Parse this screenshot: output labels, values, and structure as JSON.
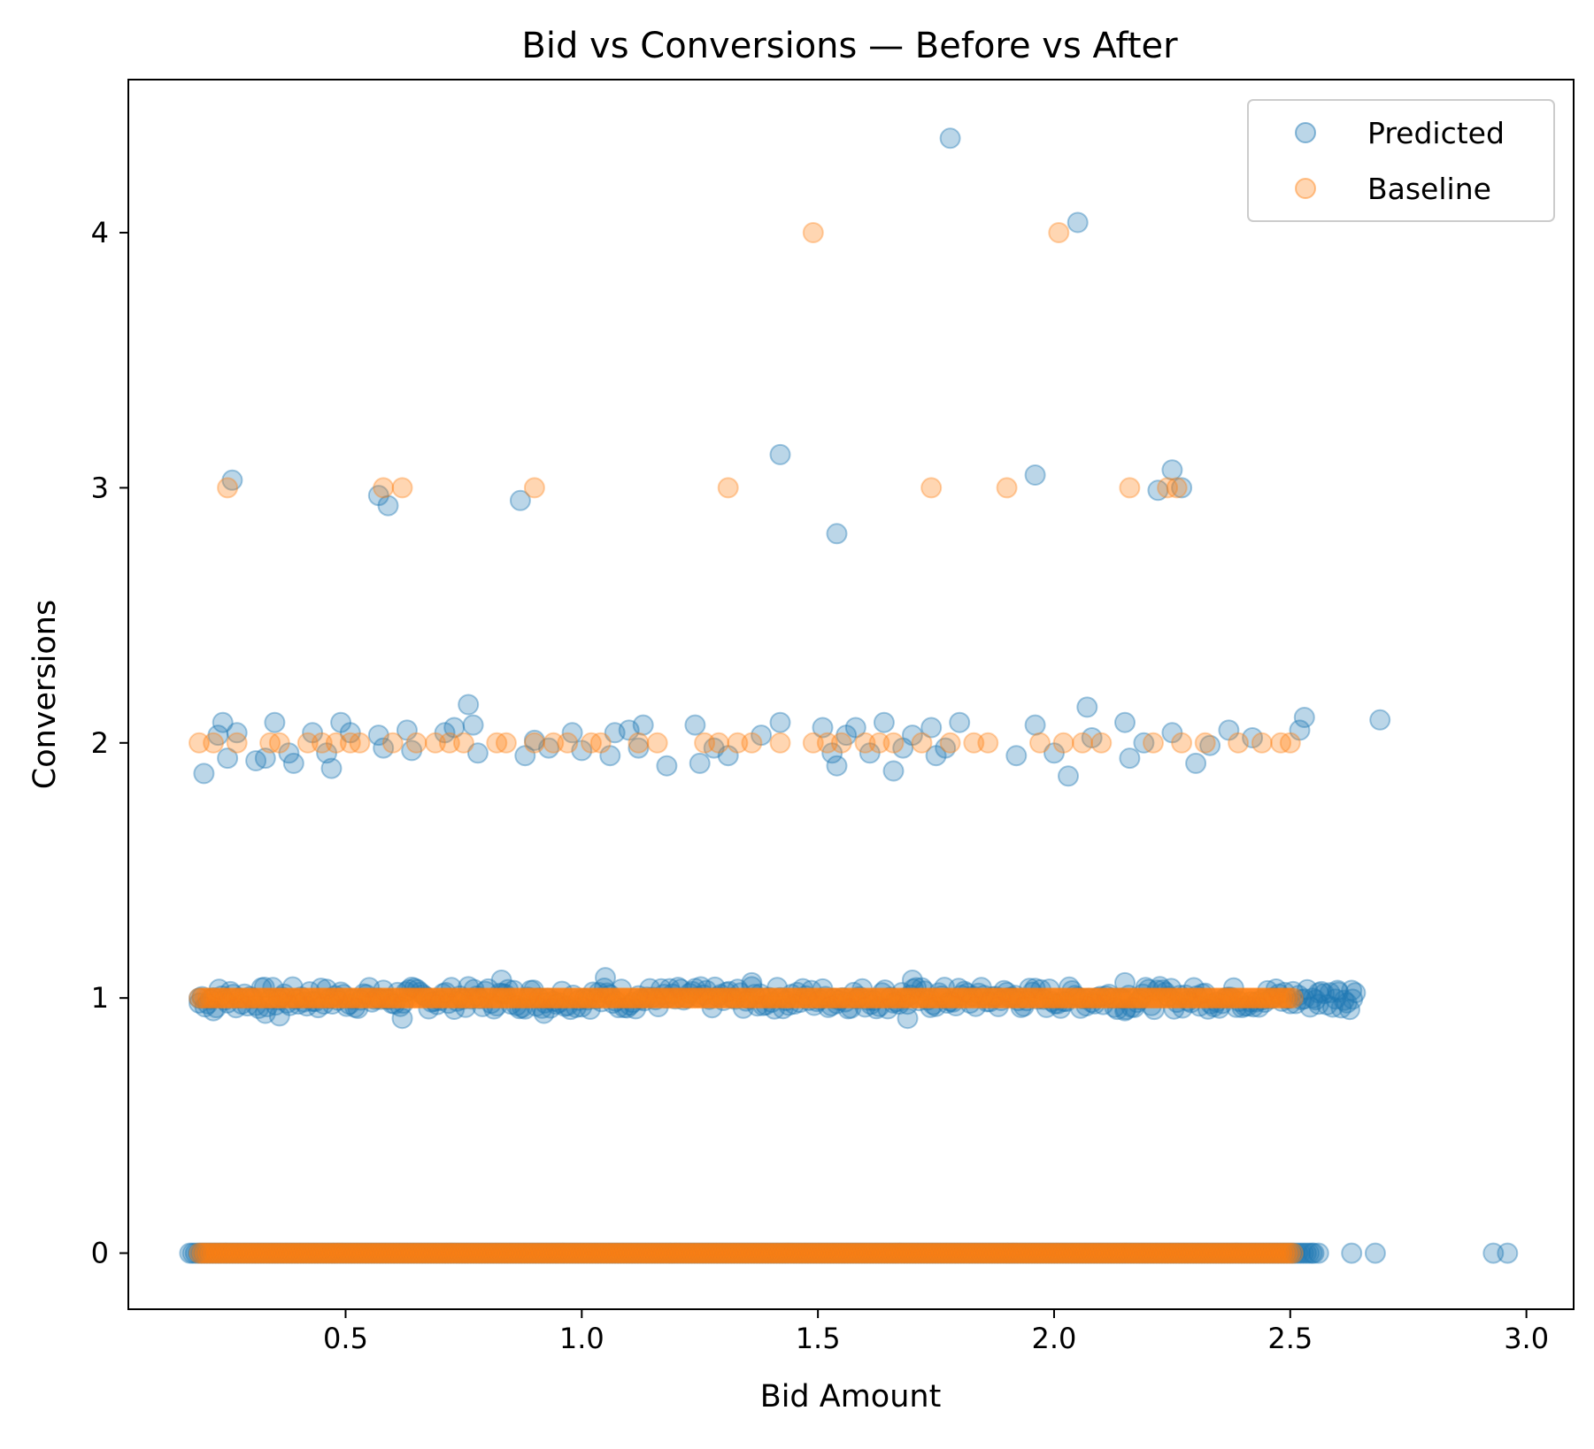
{
  "chart_data": {
    "type": "scatter",
    "title": "Bid vs Conversions — Before vs After",
    "xlabel": "Bid Amount",
    "ylabel": "Conversions",
    "xlim": [
      0.04,
      3.1
    ],
    "ylim": [
      -0.22,
      4.6
    ],
    "xticks": [
      0.5,
      1.0,
      1.5,
      2.0,
      2.5,
      3.0
    ],
    "xtick_labels": [
      "0.5",
      "1.0",
      "1.5",
      "2.0",
      "2.5",
      "3.0"
    ],
    "yticks": [
      0,
      1,
      2,
      3,
      4
    ],
    "ytick_labels": [
      "0",
      "1",
      "2",
      "3",
      "4"
    ],
    "grid": false,
    "legend_position": "top-right",
    "series": [
      {
        "name": "Predicted",
        "color": "#1f77b4",
        "points": [
          [
            1.78,
            4.37
          ],
          [
            2.05,
            4.04
          ],
          [
            1.42,
            3.13
          ],
          [
            0.26,
            3.03
          ],
          [
            0.57,
            2.97
          ],
          [
            0.59,
            2.93
          ],
          [
            0.87,
            2.95
          ],
          [
            1.54,
            2.82
          ],
          [
            1.96,
            3.05
          ],
          [
            2.22,
            2.99
          ],
          [
            2.25,
            3.07
          ],
          [
            2.27,
            3.0
          ],
          [
            0.2,
            1.88
          ],
          [
            0.23,
            2.03
          ],
          [
            0.24,
            2.08
          ],
          [
            0.25,
            1.94
          ],
          [
            0.27,
            2.04
          ],
          [
            0.31,
            1.93
          ],
          [
            0.33,
            1.94
          ],
          [
            0.35,
            2.08
          ],
          [
            0.38,
            1.96
          ],
          [
            0.39,
            1.92
          ],
          [
            0.43,
            2.04
          ],
          [
            0.46,
            1.96
          ],
          [
            0.47,
            1.9
          ],
          [
            0.49,
            2.08
          ],
          [
            0.51,
            2.04
          ],
          [
            0.57,
            2.03
          ],
          [
            0.58,
            1.98
          ],
          [
            0.63,
            2.05
          ],
          [
            0.64,
            1.97
          ],
          [
            0.71,
            2.04
          ],
          [
            0.73,
            2.06
          ],
          [
            0.76,
            2.15
          ],
          [
            0.77,
            2.07
          ],
          [
            0.78,
            1.96
          ],
          [
            0.88,
            1.95
          ],
          [
            0.9,
            2.01
          ],
          [
            0.93,
            1.98
          ],
          [
            0.98,
            2.04
          ],
          [
            1.0,
            1.97
          ],
          [
            1.06,
            1.95
          ],
          [
            1.07,
            2.04
          ],
          [
            1.1,
            2.05
          ],
          [
            1.12,
            1.98
          ],
          [
            1.13,
            2.07
          ],
          [
            1.18,
            1.91
          ],
          [
            1.24,
            2.07
          ],
          [
            1.25,
            1.92
          ],
          [
            1.28,
            1.98
          ],
          [
            1.31,
            1.95
          ],
          [
            1.38,
            2.03
          ],
          [
            1.42,
            2.08
          ],
          [
            1.51,
            2.06
          ],
          [
            1.53,
            1.96
          ],
          [
            1.54,
            1.91
          ],
          [
            1.56,
            2.03
          ],
          [
            1.58,
            2.06
          ],
          [
            1.61,
            1.96
          ],
          [
            1.64,
            2.08
          ],
          [
            1.66,
            1.89
          ],
          [
            1.68,
            1.98
          ],
          [
            1.7,
            2.03
          ],
          [
            1.74,
            2.06
          ],
          [
            1.75,
            1.95
          ],
          [
            1.77,
            1.98
          ],
          [
            1.8,
            2.08
          ],
          [
            1.92,
            1.95
          ],
          [
            1.96,
            2.07
          ],
          [
            2.0,
            1.96
          ],
          [
            2.03,
            1.87
          ],
          [
            2.07,
            2.14
          ],
          [
            2.08,
            2.02
          ],
          [
            2.15,
            2.08
          ],
          [
            2.16,
            1.94
          ],
          [
            2.19,
            2.0
          ],
          [
            2.25,
            2.04
          ],
          [
            2.3,
            1.92
          ],
          [
            2.33,
            1.99
          ],
          [
            2.37,
            2.05
          ],
          [
            2.42,
            2.02
          ],
          [
            2.52,
            2.05
          ],
          [
            2.53,
            2.1
          ],
          [
            2.69,
            2.09
          ],
          [
            0.19,
            0.98
          ],
          [
            0.22,
            0.95
          ],
          [
            0.33,
            0.94
          ],
          [
            0.36,
            0.93
          ],
          [
            0.62,
            0.92
          ],
          [
            0.83,
            1.07
          ],
          [
            0.92,
            0.94
          ],
          [
            1.05,
            1.08
          ],
          [
            1.36,
            1.06
          ],
          [
            1.69,
            0.92
          ],
          [
            1.7,
            1.07
          ],
          [
            2.15,
            0.95
          ],
          [
            2.15,
            1.06
          ],
          [
            2.56,
            1.02
          ],
          [
            2.6,
            1.03
          ],
          [
            2.63,
            1.03
          ],
          [
            2.55,
            0.0
          ],
          [
            2.56,
            0.0
          ],
          [
            2.63,
            0.0
          ],
          [
            2.68,
            0.0
          ],
          [
            2.93,
            0.0
          ],
          [
            2.96,
            0.0
          ]
        ],
        "bands": [
          {
            "y": 1.0,
            "x_start": 0.19,
            "x_end": 2.64,
            "spread": 0.045
          },
          {
            "y": 0.0,
            "x_start": 0.17,
            "x_end": 2.55,
            "spread": 0.0
          }
        ]
      },
      {
        "name": "Baseline",
        "color": "#ff7f0e",
        "points": [
          [
            1.49,
            4.0
          ],
          [
            2.01,
            4.0
          ],
          [
            0.25,
            3.0
          ],
          [
            0.58,
            3.0
          ],
          [
            0.62,
            3.0
          ],
          [
            0.9,
            3.0
          ],
          [
            1.31,
            3.0
          ],
          [
            1.74,
            3.0
          ],
          [
            1.9,
            3.0
          ],
          [
            2.16,
            3.0
          ],
          [
            2.24,
            3.0
          ],
          [
            2.26,
            3.0
          ],
          [
            0.19,
            2.0
          ],
          [
            0.22,
            2.0
          ],
          [
            0.27,
            2.0
          ],
          [
            0.34,
            2.0
          ],
          [
            0.36,
            2.0
          ],
          [
            0.42,
            2.0
          ],
          [
            0.45,
            2.0
          ],
          [
            0.48,
            2.0
          ],
          [
            0.51,
            2.0
          ],
          [
            0.53,
            2.0
          ],
          [
            0.6,
            2.0
          ],
          [
            0.65,
            2.0
          ],
          [
            0.69,
            2.0
          ],
          [
            0.72,
            2.0
          ],
          [
            0.75,
            2.0
          ],
          [
            0.82,
            2.0
          ],
          [
            0.84,
            2.0
          ],
          [
            0.9,
            2.0
          ],
          [
            0.94,
            2.0
          ],
          [
            0.97,
            2.0
          ],
          [
            1.02,
            2.0
          ],
          [
            1.04,
            2.0
          ],
          [
            1.12,
            2.0
          ],
          [
            1.16,
            2.0
          ],
          [
            1.26,
            2.0
          ],
          [
            1.29,
            2.0
          ],
          [
            1.33,
            2.0
          ],
          [
            1.36,
            2.0
          ],
          [
            1.42,
            2.0
          ],
          [
            1.49,
            2.0
          ],
          [
            1.52,
            2.0
          ],
          [
            1.55,
            2.0
          ],
          [
            1.6,
            2.0
          ],
          [
            1.63,
            2.0
          ],
          [
            1.66,
            2.0
          ],
          [
            1.72,
            2.0
          ],
          [
            1.78,
            2.0
          ],
          [
            1.83,
            2.0
          ],
          [
            1.86,
            2.0
          ],
          [
            1.97,
            2.0
          ],
          [
            2.02,
            2.0
          ],
          [
            2.06,
            2.0
          ],
          [
            2.1,
            2.0
          ],
          [
            2.21,
            2.0
          ],
          [
            2.27,
            2.0
          ],
          [
            2.32,
            2.0
          ],
          [
            2.39,
            2.0
          ],
          [
            2.44,
            2.0
          ],
          [
            2.48,
            2.0
          ],
          [
            2.5,
            2.0
          ]
        ],
        "bands": [
          {
            "y": 1.0,
            "x_start": 0.19,
            "x_end": 2.51,
            "spread": 0.0
          },
          {
            "y": 0.0,
            "x_start": 0.19,
            "x_end": 2.51,
            "spread": 0.0
          }
        ]
      }
    ]
  }
}
